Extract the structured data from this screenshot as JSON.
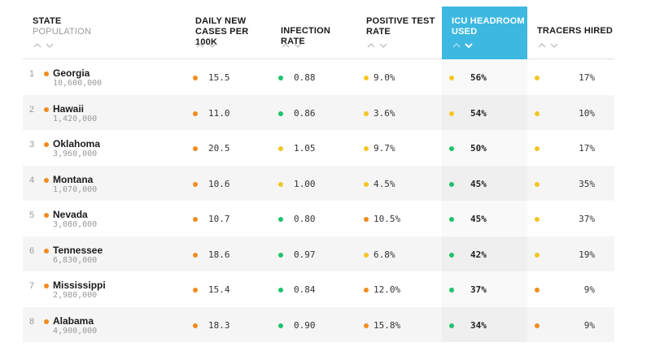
{
  "headers": {
    "state": "STATE",
    "population": "POPULATION",
    "cases_line1": "DAILY NEW",
    "cases_line2": "CASES PER 100K",
    "infection": "INFECTION RATE",
    "positive_line1": "POSITIVE TEST",
    "positive_line2": "RATE",
    "icu_line1": "ICU HEADROOM",
    "icu_line2": "USED",
    "tracers": "TRACERS HIRED"
  },
  "active_sort_column": "icu",
  "colors": {
    "orange": "#f08c1e",
    "green": "#1fc26b",
    "yellow": "#f3c623",
    "active_header": "#3db8e0"
  },
  "rows": [
    {
      "rank": "1",
      "state": "Georgia",
      "population": "10,600,000",
      "state_dot": "orange",
      "cases": "15.5",
      "cases_dot": "orange",
      "infection": "0.88",
      "infection_dot": "green",
      "positive": "9.0%",
      "positive_dot": "yellow",
      "icu": "56%",
      "icu_dot": "yellow",
      "tracers": "17%",
      "tracers_dot": "yellow"
    },
    {
      "rank": "2",
      "state": "Hawaii",
      "population": "1,420,000",
      "state_dot": "orange",
      "cases": "11.0",
      "cases_dot": "orange",
      "infection": "0.86",
      "infection_dot": "green",
      "positive": "3.6%",
      "positive_dot": "yellow",
      "icu": "54%",
      "icu_dot": "yellow",
      "tracers": "10%",
      "tracers_dot": "yellow"
    },
    {
      "rank": "3",
      "state": "Oklahoma",
      "population": "3,960,000",
      "state_dot": "orange",
      "cases": "20.5",
      "cases_dot": "orange",
      "infection": "1.05",
      "infection_dot": "yellow",
      "positive": "9.7%",
      "positive_dot": "yellow",
      "icu": "50%",
      "icu_dot": "green",
      "tracers": "17%",
      "tracers_dot": "yellow"
    },
    {
      "rank": "4",
      "state": "Montana",
      "population": "1,070,000",
      "state_dot": "orange",
      "cases": "10.6",
      "cases_dot": "orange",
      "infection": "1.00",
      "infection_dot": "yellow",
      "positive": "4.5%",
      "positive_dot": "yellow",
      "icu": "45%",
      "icu_dot": "green",
      "tracers": "35%",
      "tracers_dot": "yellow"
    },
    {
      "rank": "5",
      "state": "Nevada",
      "population": "3,080,000",
      "state_dot": "orange",
      "cases": "10.7",
      "cases_dot": "orange",
      "infection": "0.80",
      "infection_dot": "green",
      "positive": "10.5%",
      "positive_dot": "orange",
      "icu": "45%",
      "icu_dot": "green",
      "tracers": "37%",
      "tracers_dot": "yellow"
    },
    {
      "rank": "6",
      "state": "Tennessee",
      "population": "6,830,000",
      "state_dot": "orange",
      "cases": "18.6",
      "cases_dot": "orange",
      "infection": "0.97",
      "infection_dot": "green",
      "positive": "6.8%",
      "positive_dot": "yellow",
      "icu": "42%",
      "icu_dot": "green",
      "tracers": "19%",
      "tracers_dot": "yellow"
    },
    {
      "rank": "7",
      "state": "Mississippi",
      "population": "2,980,000",
      "state_dot": "orange",
      "cases": "15.4",
      "cases_dot": "orange",
      "infection": "0.84",
      "infection_dot": "green",
      "positive": "12.0%",
      "positive_dot": "orange",
      "icu": "37%",
      "icu_dot": "green",
      "tracers": "9%",
      "tracers_dot": "orange"
    },
    {
      "rank": "8",
      "state": "Alabama",
      "population": "4,900,000",
      "state_dot": "orange",
      "cases": "18.3",
      "cases_dot": "orange",
      "infection": "0.90",
      "infection_dot": "green",
      "positive": "15.8%",
      "positive_dot": "orange",
      "icu": "34%",
      "icu_dot": "green",
      "tracers": "9%",
      "tracers_dot": "orange"
    }
  ]
}
